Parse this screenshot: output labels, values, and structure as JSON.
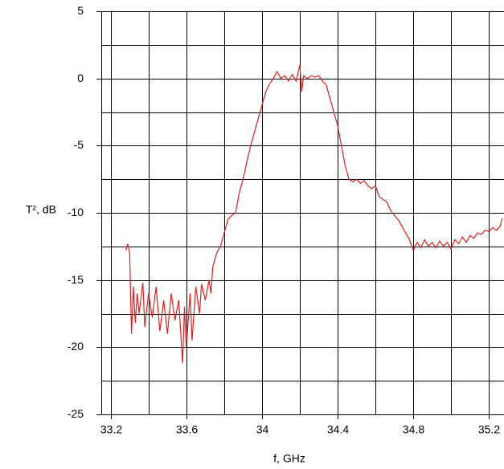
{
  "chart_data": {
    "type": "line",
    "xlabel": "f, GHz",
    "ylabel": "T², dB",
    "xlim": [
      33.15,
      35.28
    ],
    "ylim": [
      -25,
      5
    ],
    "xticks": [
      33.2,
      33.6,
      34,
      34.4,
      34.8,
      35.2
    ],
    "xminorticks": [
      33.4,
      33.8,
      34.2,
      34.6,
      35.0
    ],
    "yticks": [
      -25,
      -20,
      -15,
      -10,
      -5,
      0,
      5
    ],
    "yminorticks": [
      -22.5,
      -17.5,
      -12.5,
      -7.5,
      -2.5,
      2.5
    ],
    "grid": true,
    "series": [
      {
        "color": "#e02020",
        "x": [
          33.28,
          33.29,
          33.3,
          33.31,
          33.32,
          33.33,
          33.34,
          33.35,
          33.37,
          33.38,
          33.4,
          33.42,
          33.44,
          33.46,
          33.48,
          33.5,
          33.52,
          33.54,
          33.56,
          33.58,
          33.59,
          33.6,
          33.62,
          33.63,
          33.65,
          33.67,
          33.68,
          33.7,
          33.72,
          33.73,
          33.74,
          33.76,
          33.78,
          33.8,
          33.82,
          33.84,
          33.86,
          33.88,
          33.9,
          33.92,
          33.94,
          33.96,
          33.98,
          34.0,
          34.02,
          34.04,
          34.06,
          34.08,
          34.1,
          34.12,
          34.14,
          34.16,
          34.18,
          34.2,
          34.21,
          34.22,
          34.24,
          34.26,
          34.28,
          34.3,
          34.32,
          34.34,
          34.36,
          34.38,
          34.4,
          34.42,
          34.44,
          34.46,
          34.48,
          34.5,
          34.52,
          34.54,
          34.56,
          34.58,
          34.6,
          34.62,
          34.64,
          34.66,
          34.68,
          34.7,
          34.72,
          34.74,
          34.76,
          34.78,
          34.8,
          34.82,
          34.84,
          34.86,
          34.88,
          34.9,
          34.92,
          34.94,
          34.96,
          34.98,
          35.0,
          35.02,
          35.04,
          35.06,
          35.08,
          35.1,
          35.12,
          35.14,
          35.16,
          35.18,
          35.2,
          35.22,
          35.24,
          35.26,
          35.27
        ],
        "values": [
          -12.8,
          -12.3,
          -13.0,
          -19.0,
          -15.5,
          -18.2,
          -16.0,
          -17.5,
          -15.2,
          -18.5,
          -16.0,
          -17.8,
          -15.5,
          -18.8,
          -16.5,
          -19.0,
          -16.0,
          -18.0,
          -16.5,
          -21.2,
          -17.0,
          -20.0,
          -16.0,
          -19.5,
          -15.5,
          -17.5,
          -15.3,
          -16.5,
          -15.0,
          -16.0,
          -14.0,
          -13.0,
          -12.5,
          -11.5,
          -10.5,
          -10.2,
          -10.0,
          -8.5,
          -7.5,
          -6.2,
          -5.0,
          -4.0,
          -3.0,
          -2.0,
          -1.0,
          -0.4,
          0.0,
          0.5,
          0.0,
          0.2,
          -0.2,
          0.3,
          -0.2,
          1.0,
          -1.0,
          0.2,
          0.0,
          0.2,
          0.1,
          0.2,
          -0.2,
          -0.5,
          -1.5,
          -2.5,
          -3.5,
          -5.0,
          -6.5,
          -7.5,
          -7.7,
          -7.5,
          -7.8,
          -7.6,
          -8.0,
          -8.2,
          -8.0,
          -8.8,
          -9.0,
          -9.2,
          -9.8,
          -10.2,
          -10.5,
          -11.0,
          -11.5,
          -12.0,
          -12.8,
          -12.2,
          -12.6,
          -12.0,
          -12.5,
          -12.2,
          -12.6,
          -12.1,
          -12.5,
          -12.2,
          -12.7,
          -12.0,
          -12.3,
          -11.8,
          -12.2,
          -11.7,
          -11.9,
          -11.5,
          -11.6,
          -11.3,
          -11.4,
          -11.1,
          -11.3,
          -11.0,
          -10.4
        ]
      }
    ]
  }
}
